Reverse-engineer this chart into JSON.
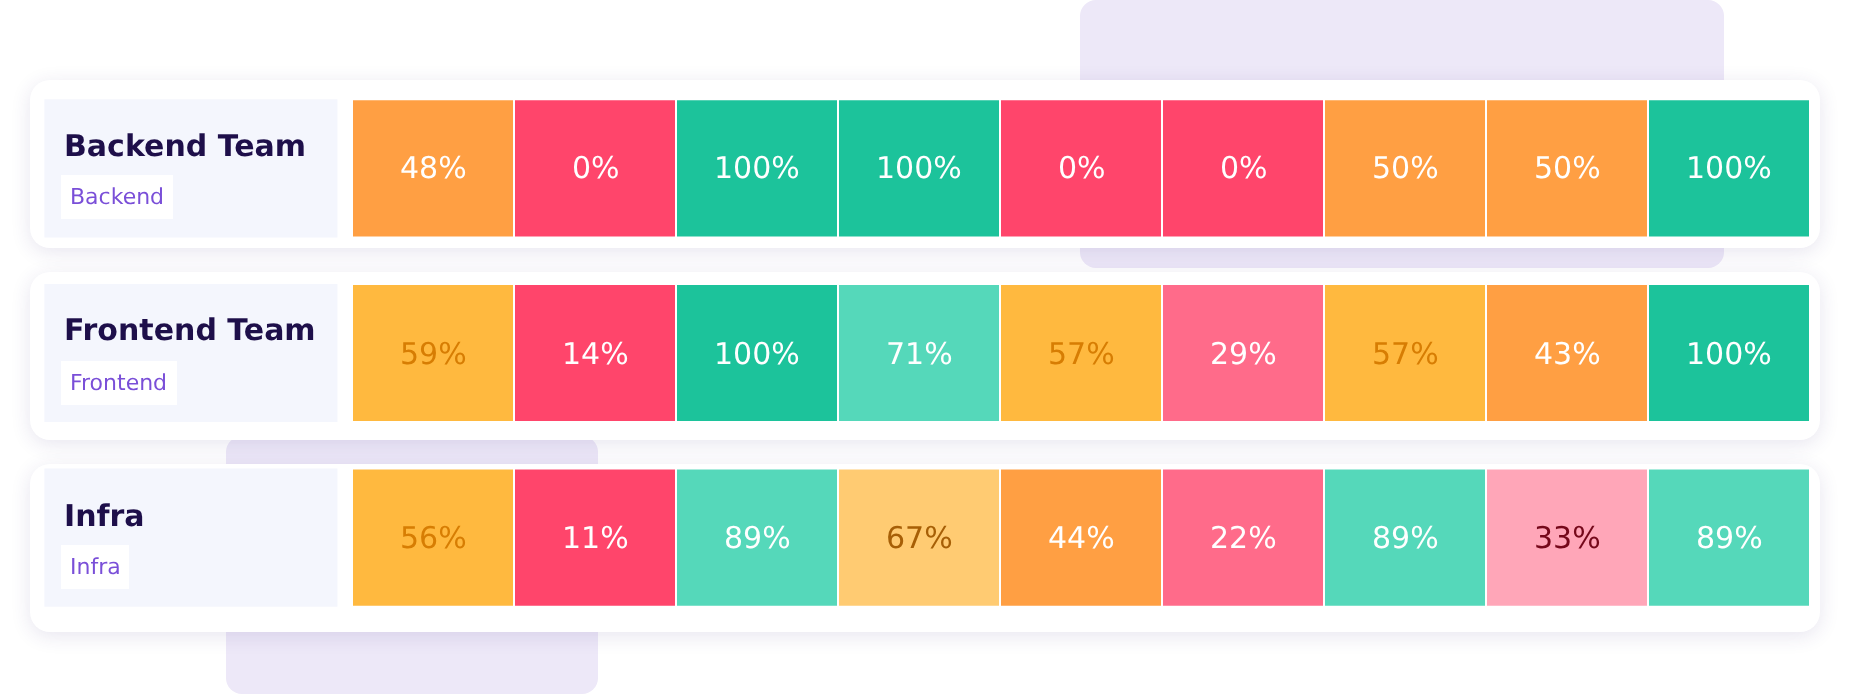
{
  "chart_data": {
    "type": "heatmap",
    "categories": [
      null,
      null,
      null,
      null,
      null,
      null,
      null,
      null,
      null
    ],
    "y_categories": [
      "Backend Team",
      "Frontend Team",
      "Infra"
    ],
    "y2_categories": [
      "Backend",
      "Frontend",
      "Infra"
    ],
    "cells": [
      [
        48,
        0,
        100,
        100,
        0,
        0,
        50,
        50,
        100
      ],
      [
        59,
        14,
        100,
        71,
        57,
        29,
        57,
        43,
        100
      ],
      [
        56,
        11,
        89,
        67,
        44,
        22,
        89,
        33,
        89
      ]
    ],
    "cell_labels": [
      [
        "48%",
        "0%",
        "100%",
        "100%",
        "0%",
        "0%",
        "50%",
        "50%",
        "100%"
      ],
      [
        "59%",
        "14%",
        "100%",
        "71%",
        "57%",
        "29%",
        "57%",
        "43%",
        "100%"
      ],
      [
        "56%",
        "11%",
        "89%",
        "67%",
        "44%",
        "22%",
        "89%",
        "33%",
        "89%"
      ]
    ],
    "colors": [
      [
        "#ff9f43",
        "#ff456b",
        "#1cc39b",
        "#1cc39b",
        "#ff456b",
        "#ff456b",
        "#ff9f43",
        "#ff9f43",
        "#1cc39b"
      ],
      [
        "#ffb93f",
        "#ff456b",
        "#1cc39b",
        "#55d8ba",
        "#ffb93f",
        "#ff6b8a",
        "#ffb93f",
        "#ff9f43",
        "#1cc39b"
      ],
      [
        "#ffb93f",
        "#ff456b",
        "#55d8ba",
        "#ffcb72",
        "#ff9f43",
        "#ff6b8a",
        "#55d8ba",
        "#ffa6b8",
        "#55d8ba"
      ]
    ]
  }
}
